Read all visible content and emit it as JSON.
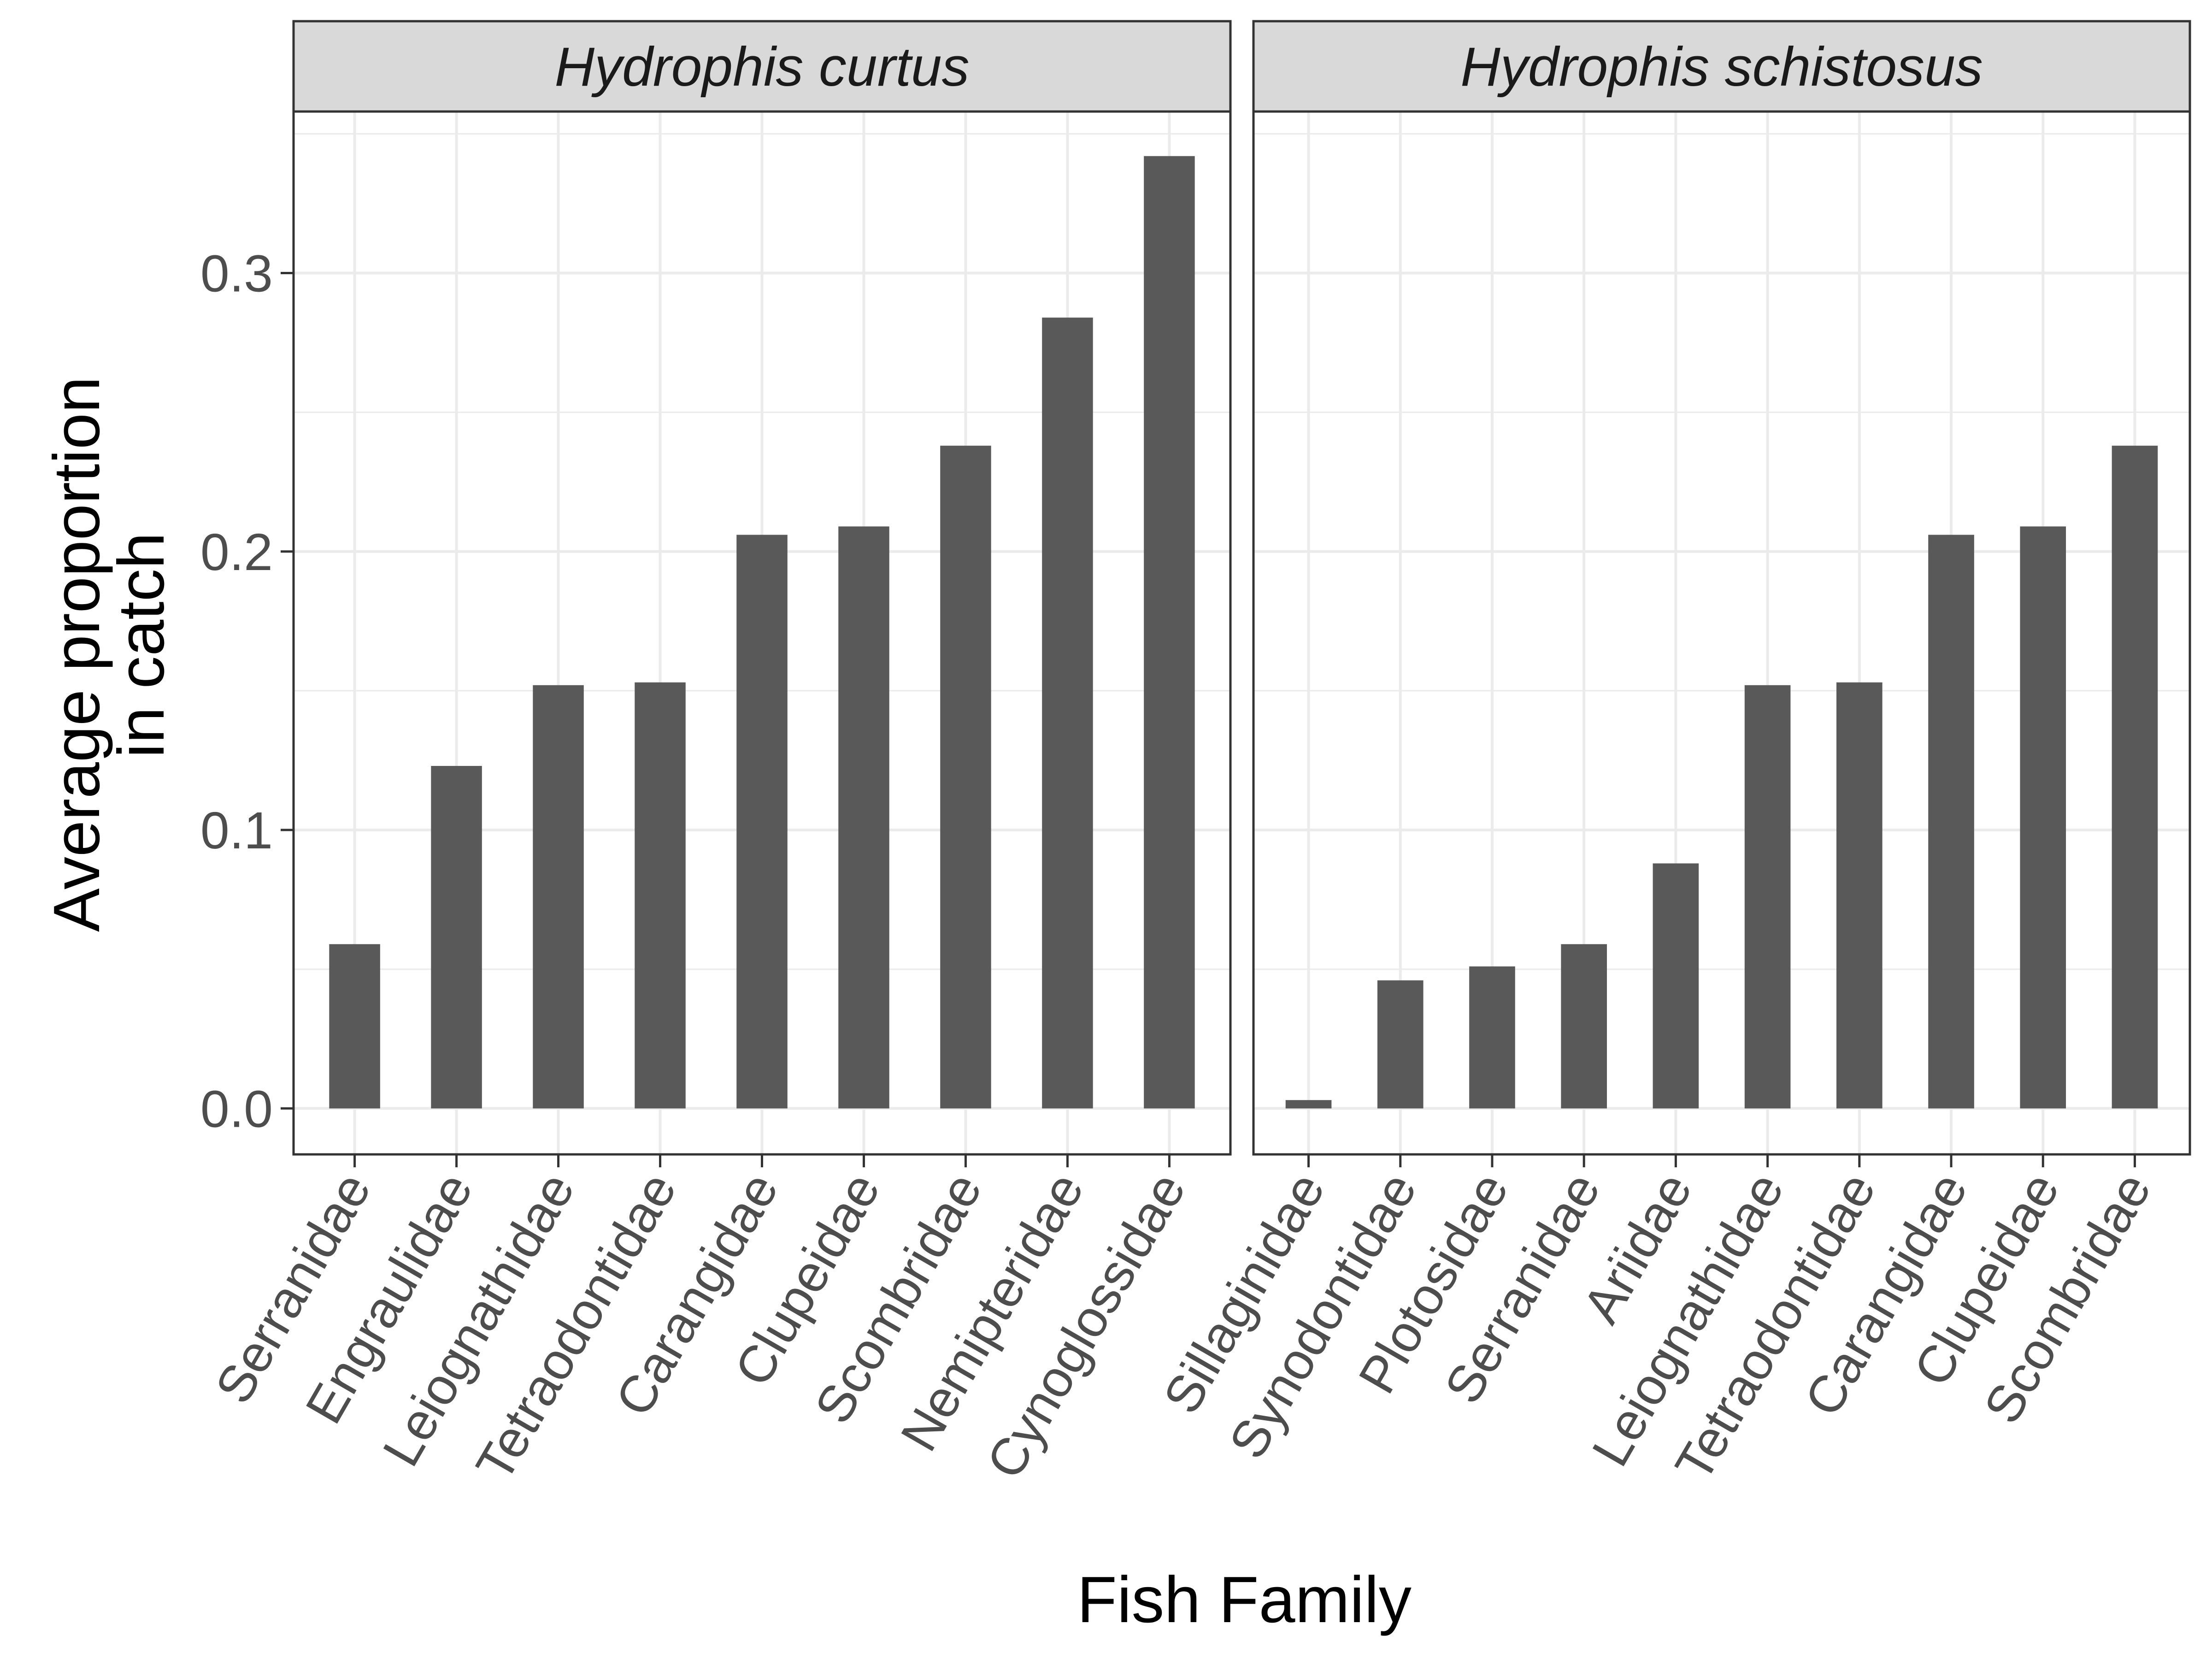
{
  "chart_data": {
    "type": "bar",
    "xlabel": "Fish Family",
    "ylabel": [
      "Average proportion",
      "in catch"
    ],
    "ylim": [
      -0.0165,
      0.358
    ],
    "y_major_ticks": [
      0.0,
      0.1,
      0.2,
      0.3
    ],
    "y_tick_labels": [
      "0.0",
      "0.1",
      "0.2",
      "0.3"
    ],
    "y_minor_ticks": [
      0.05,
      0.15,
      0.25,
      0.35
    ],
    "grid": true,
    "bar_color": "#595959",
    "panels": [
      {
        "title": "Hydrophis curtus",
        "categories": [
          "Serranidae",
          "Engraulidae",
          "Leiognathidae",
          "Tetraodontidae",
          "Carangidae",
          "Clupeidae",
          "Scombridae",
          "Nemipteridae",
          "Cynoglossidae"
        ],
        "values": [
          0.059,
          0.123,
          0.152,
          0.153,
          0.206,
          0.209,
          0.238,
          0.284,
          0.342
        ]
      },
      {
        "title": "Hydrophis schistosus",
        "categories": [
          "Sillaginidae",
          "Synodontidae",
          "Plotosidae",
          "Serranidae",
          "Ariidae",
          "Leiognathidae",
          "Tetraodontidae",
          "Carangidae",
          "Clupeidae",
          "Scombridae"
        ],
        "values": [
          0.003,
          0.046,
          0.051,
          0.059,
          0.088,
          0.152,
          0.153,
          0.206,
          0.209,
          0.238
        ]
      }
    ]
  }
}
